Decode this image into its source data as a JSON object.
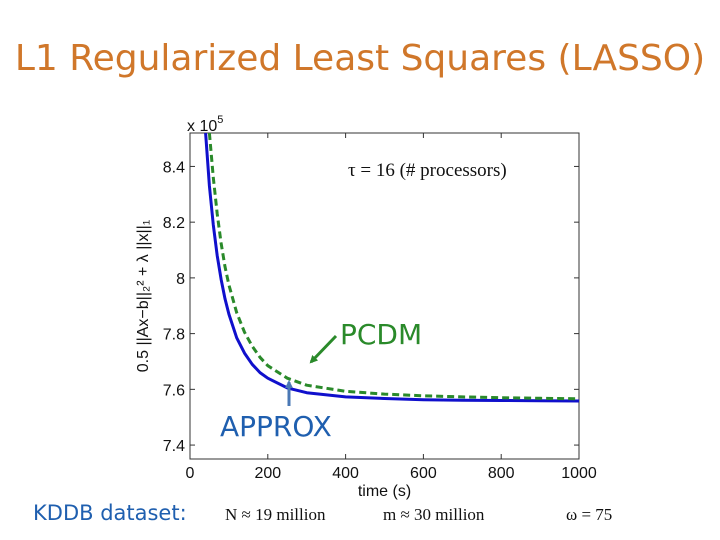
{
  "slide": {
    "title": "L1 Regularized Least Squares (LASSO)",
    "footer_label": "KDDB dataset:",
    "params": [
      "N ≈ 19 million",
      "m ≈ 30 million",
      "ω = 75"
    ],
    "tau_label": "τ = 16 (# processors)"
  },
  "annotations": {
    "pcdm": "PCDM",
    "approx": "APPROX",
    "pcdm_color": "#2A8A2A",
    "approx_color": "#1F5FAF"
  },
  "chart_data": {
    "type": "line",
    "xlabel": "time (s)",
    "ylabel": "0.5 ||Ax−b||₂² + λ ||x||₁",
    "y_multiplier": "x 10^5",
    "xlim": [
      0,
      1000
    ],
    "ylim": [
      735000,
      852000
    ],
    "xticks": [
      0,
      200,
      400,
      600,
      800,
      1000
    ],
    "yticks": [
      740000,
      760000,
      780000,
      800000,
      820000,
      840000
    ],
    "ytick_labels": [
      "7.4",
      "7.6",
      "7.8",
      "8",
      "8.2",
      "8.4"
    ],
    "grid": false,
    "series": [
      {
        "name": "APPROX",
        "color": "#1010CC",
        "dash": "solid",
        "x": [
          40,
          50,
          60,
          70,
          80,
          90,
          100,
          120,
          140,
          160,
          180,
          200,
          250,
          300,
          400,
          500,
          600,
          700,
          800,
          900,
          1000
        ],
        "y": [
          852000,
          833000,
          819000,
          808000,
          799500,
          792500,
          787000,
          778500,
          773000,
          769000,
          766000,
          764000,
          760500,
          758800,
          757300,
          756700,
          756300,
          756100,
          756000,
          755900,
          755800
        ]
      },
      {
        "name": "PCDM",
        "color": "#2A8A2A",
        "dash": "dashed",
        "x": [
          50,
          60,
          70,
          80,
          90,
          100,
          120,
          140,
          160,
          180,
          200,
          250,
          300,
          400,
          500,
          600,
          700,
          800,
          900,
          1000
        ],
        "y": [
          852000,
          836000,
          823000,
          812500,
          804000,
          797500,
          787500,
          780500,
          775500,
          771500,
          768500,
          764000,
          761500,
          759300,
          758300,
          757700,
          757300,
          757000,
          756800,
          756600
        ]
      }
    ]
  }
}
